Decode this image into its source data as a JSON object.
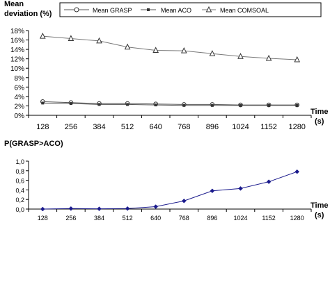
{
  "chart_data": [
    {
      "type": "line",
      "ylabel_line1": "Mean",
      "ylabel_line2": "deviation (%)",
      "xlabel": "Time",
      "xunit": "(s)",
      "categories": [
        "128",
        "256",
        "384",
        "512",
        "640",
        "768",
        "896",
        "1024",
        "1152",
        "1280"
      ],
      "yticks": [
        "0%",
        "2%",
        "4%",
        "6%",
        "8%",
        "10%",
        "12%",
        "14%",
        "16%",
        "18%"
      ],
      "ylim": [
        0,
        18
      ],
      "grid": false,
      "legend_position": "top",
      "series": [
        {
          "name": "Mean GRASP",
          "marker": "circle",
          "color": "#555555",
          "values": [
            2.9,
            2.7,
            2.5,
            2.5,
            2.4,
            2.3,
            2.3,
            2.2,
            2.2,
            2.2
          ]
        },
        {
          "name": "Mean ACO",
          "marker": "square",
          "color": "#555555",
          "values": [
            2.6,
            2.5,
            2.3,
            2.3,
            2.2,
            2.1,
            2.1,
            2.1,
            2.1,
            2.1
          ]
        },
        {
          "name": "Mean COMSOAL",
          "marker": "triangle",
          "color": "#777777",
          "values": [
            16.8,
            16.3,
            15.8,
            14.5,
            13.8,
            13.7,
            13.1,
            12.5,
            12.1,
            11.8
          ]
        }
      ]
    },
    {
      "type": "line",
      "ylabel": "P(GRASP>ACO)",
      "xlabel": "Time",
      "xunit": "(s)",
      "categories": [
        "128",
        "256",
        "384",
        "512",
        "640",
        "768",
        "896",
        "1024",
        "1152",
        "1280"
      ],
      "yticks": [
        "0,0",
        "0,2",
        "0,4",
        "0,6",
        "0,8",
        "1,0"
      ],
      "ylim": [
        0,
        1
      ],
      "grid": false,
      "series": [
        {
          "marker": "diamond",
          "color": "#1a1a8c",
          "values": [
            0.0,
            0.01,
            0.005,
            0.01,
            0.05,
            0.17,
            0.38,
            0.43,
            0.57,
            0.78
          ]
        }
      ]
    }
  ]
}
